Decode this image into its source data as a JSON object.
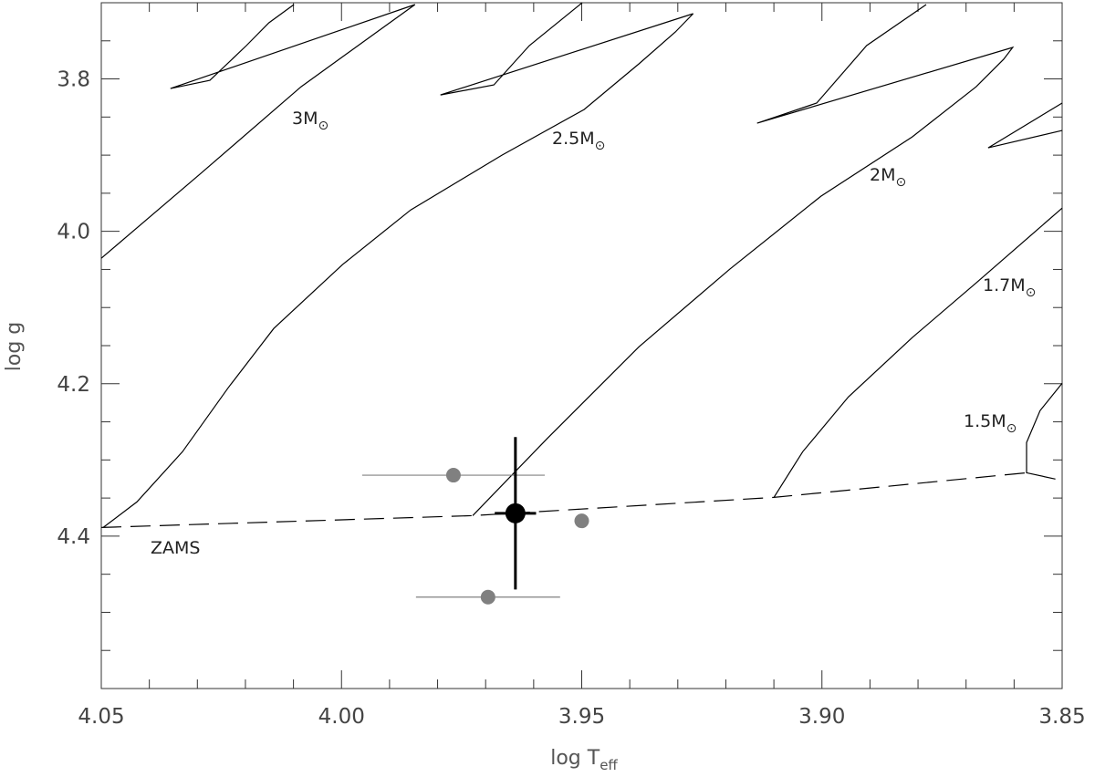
{
  "chart_data": {
    "type": "track",
    "xlabel": "log T",
    "xlabel_sub": "eff",
    "ylabel": "log g",
    "xlim": [
      3.85,
      4.05
    ],
    "x_reversed": true,
    "ylim": [
      3.7,
      4.6
    ],
    "y_reversed": true,
    "xticks": [
      4.05,
      {
        "value": 4,
        "label": "4.00"
      },
      3.95,
      {
        "value": 3.9,
        "label": "3.90"
      },
      3.85
    ],
    "xminor": [
      4.04,
      4.03,
      4.02,
      4.01,
      3.99,
      3.98,
      3.97,
      3.96,
      3.94,
      3.93,
      3.92,
      3.91,
      3.89,
      3.88,
      3.87,
      3.86
    ],
    "yticks": [
      3.8,
      {
        "value": 4,
        "label": "4.0"
      },
      4.2,
      4.4
    ],
    "yminor": [
      3.75,
      3.85,
      3.9,
      3.95,
      4.05,
      4.1,
      4.15,
      4.25,
      4.3,
      4.35,
      4.45,
      4.5,
      4.55
    ],
    "tracks": [
      {
        "label": "3M",
        "label_sub": "⊙",
        "color": "#000000",
        "x": [
          4.05,
          4.0293,
          4.0084,
          3.9913,
          3.9847,
          4.0356,
          4.0274,
          4.0198,
          4.0151,
          4.0099
        ],
        "y": [
          4.0353,
          3.924,
          3.8102,
          3.7323,
          3.7024,
          3.8126,
          3.8018,
          3.7563,
          3.7263,
          3.7024
        ]
      },
      {
        "label": "2.5M",
        "label_sub": "⊙",
        "color": "#000000",
        "x": [
          4.0496,
          4.0426,
          4.0331,
          4.0236,
          4.0141,
          3.9998,
          3.9856,
          3.9666,
          3.9495,
          3.9381,
          3.9305,
          3.9268,
          3.9794,
          3.9683,
          3.9609,
          3.9499
        ],
        "y": [
          4.3886,
          4.3551,
          4.2892,
          4.2054,
          4.1275,
          4.0437,
          3.9719,
          3.9,
          3.8401,
          3.7802,
          3.7383,
          3.7144,
          3.821,
          3.8078,
          3.7563,
          3.7
        ]
      },
      {
        "label": "2M",
        "label_sub": "⊙",
        "color": "#000000",
        "x": [
          3.9727,
          3.9571,
          3.9381,
          3.9192,
          3.9002,
          3.8812,
          3.8679,
          3.8622,
          3.8603,
          3.9135,
          3.9011,
          3.8907,
          3.8783
        ],
        "y": [
          4.3731,
          4.2713,
          4.1515,
          4.0497,
          3.9539,
          3.876,
          3.8102,
          3.7743,
          3.7587,
          3.8581,
          3.8317,
          3.7563,
          3.7024
        ]
      },
      {
        "label": "1.7M",
        "label_sub": "⊙",
        "color": "#000000",
        "x": [
          3.91,
          3.904,
          3.8945,
          3.8812,
          3.8679,
          3.85,
          null,
          3.85,
          3.8654,
          3.85
        ],
        "y": [
          4.3491,
          4.2892,
          4.2174,
          4.1395,
          4.0677,
          3.9695,
          null,
          3.8317,
          3.8904,
          3.8677
        ]
      },
      {
        "label": "1.5M",
        "label_sub": "⊙",
        "color": "#000000",
        "x": [
          3.85,
          3.8546,
          3.8574,
          3.8574,
          3.8514
        ],
        "y": [
          4.1994,
          4.2353,
          4.2772,
          4.3168,
          4.3251
        ]
      }
    ],
    "zams": {
      "label": "ZAMS",
      "color": "#000000",
      "dashed": true,
      "x": [
        4.05,
        3.9727,
        3.91,
        3.8574
      ],
      "y": [
        4.3886,
        4.3731,
        4.3491,
        4.3168
      ]
    },
    "stars": [
      {
        "x": 3.9767,
        "y": 4.32,
        "xerr": 0.019,
        "yerr": null,
        "color": "#808080"
      },
      {
        "x": 3.9695,
        "y": 4.48,
        "xerr": 0.015,
        "yerr": null,
        "color": "#808080"
      },
      {
        "x": 3.95,
        "y": 4.38,
        "xerr": null,
        "yerr": null,
        "color": "#808080"
      },
      {
        "x": 3.9638,
        "y": 4.37,
        "xerr": 0.0043,
        "yerr": 0.1,
        "color": "#000000"
      }
    ]
  }
}
